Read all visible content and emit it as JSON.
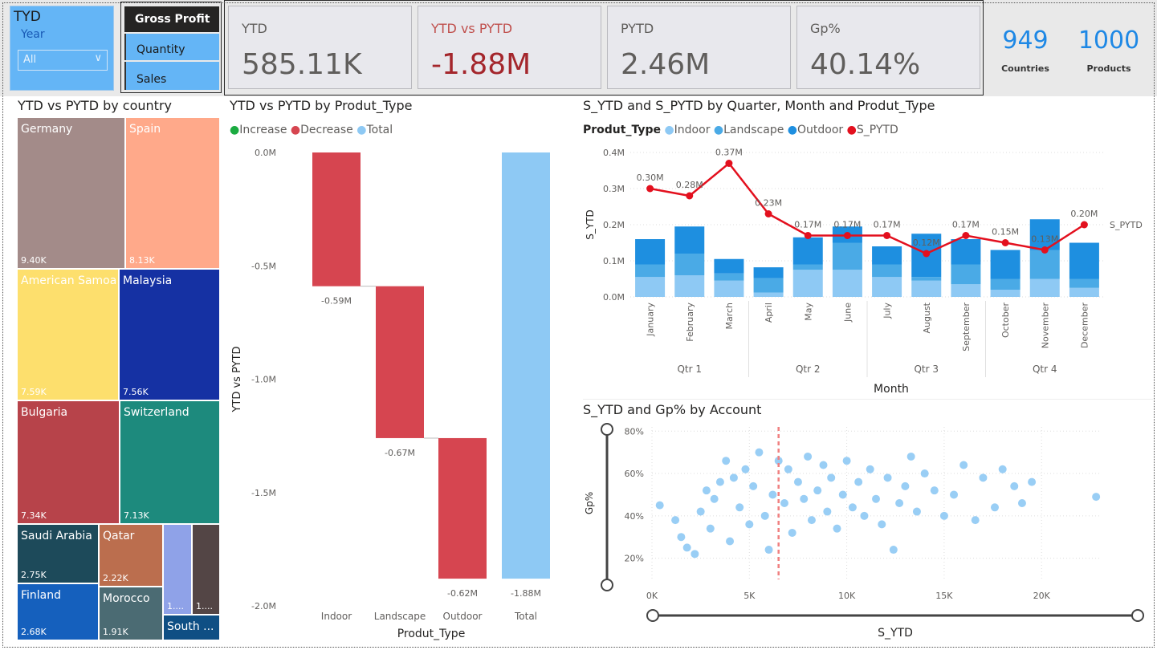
{
  "slicer": {
    "title": "TYD",
    "label": "Year",
    "value": "All"
  },
  "measures": [
    "Gross Profit",
    "Quantity",
    "Sales"
  ],
  "kpis": [
    {
      "label": "YTD",
      "value": "585.11K",
      "color": "#605e5c"
    },
    {
      "label": "YTD vs PYTD",
      "value": "-1.88M",
      "color": "#a4262c"
    },
    {
      "label": "PYTD",
      "value": "2.46M",
      "color": "#605e5c"
    },
    {
      "label": "Gp%",
      "value": "40.14%",
      "color": "#605e5c"
    }
  ],
  "counts": [
    {
      "value": "949",
      "label": "Countries"
    },
    {
      "value": "1000",
      "label": "Products"
    }
  ],
  "treemap": {
    "title": "YTD vs PYTD by country",
    "tiles": [
      {
        "name": "Germany",
        "value": "9.40K",
        "color": "#a38b89"
      },
      {
        "name": "Spain",
        "value": "8.13K",
        "color": "#ffa98a"
      },
      {
        "name": "American Samoa",
        "value": "7.59K",
        "color": "#fddf6d"
      },
      {
        "name": "Malaysia",
        "value": "7.56K",
        "color": "#1531a3"
      },
      {
        "name": "Bulgaria",
        "value": "7.34K",
        "color": "#b7434a"
      },
      {
        "name": "Switzerland",
        "value": "7.13K",
        "color": "#1d8a7d"
      },
      {
        "name": "Saudi Arabia",
        "value": "2.75K",
        "color": "#1d4a5a"
      },
      {
        "name": "Qatar",
        "value": "2.22K",
        "color": "#bb6e4e"
      },
      {
        "name": "",
        "value": "1....",
        "color": "#8fa2e8"
      },
      {
        "name": "",
        "value": "1....",
        "color": "#534545"
      },
      {
        "name": "Finland",
        "value": "2.68K",
        "color": "#1560bd"
      },
      {
        "name": "Morocco",
        "value": "1.91K",
        "color": "#4b6b73"
      },
      {
        "name": "South ...",
        "value": "",
        "color": "#0f4f84"
      }
    ]
  },
  "waterfall": {
    "title": "YTD vs PYTD by Produt_Type",
    "legend": [
      {
        "label": "Increase",
        "color": "#1aab40"
      },
      {
        "label": "Decrease",
        "color": "#d64550"
      },
      {
        "label": "Total",
        "color": "#8ec9f4"
      }
    ]
  },
  "combo": {
    "title": "S_YTD and S_PYTD by Quarter, Month and Produt_Type",
    "legend_title": "Produt_Type",
    "legend": [
      {
        "label": "Indoor",
        "color": "#8ec9f4"
      },
      {
        "label": "Landscape",
        "color": "#4aaae6"
      },
      {
        "label": "Outdoor",
        "color": "#1e8fe0"
      },
      {
        "label": "S_PYTD",
        "color": "#e3101e"
      }
    ],
    "line_label": "S_PYTD"
  },
  "scatter": {
    "title": "S_YTD and Gp% by Account"
  },
  "chart_data": [
    {
      "type": "bar",
      "subtype": "waterfall",
      "title": "YTD vs PYTD by Produt_Type",
      "categories": [
        "Indoor",
        "Landscape",
        "Outdoor",
        "Total"
      ],
      "values": [
        -0.59,
        -0.67,
        -0.62,
        -1.88
      ],
      "data_labels": [
        "-0.59M",
        "-0.67M",
        "-0.62M",
        "-1.88M"
      ],
      "xlabel": "Produt_Type",
      "ylabel": "YTD vs PYTD",
      "ylim": [
        -2.0,
        0.0
      ],
      "yticks": [
        "0.0M",
        "-0.5M",
        "-1.0M",
        "-1.5M",
        "-2.0M"
      ],
      "legend_position": "top-left"
    },
    {
      "type": "bar",
      "subtype": "stacked-column-with-line",
      "title": "S_YTD and S_PYTD by Quarter, Month and Produt_Type",
      "categories": [
        "January",
        "February",
        "March",
        "April",
        "May",
        "June",
        "July",
        "August",
        "September",
        "October",
        "November",
        "December"
      ],
      "quarters": [
        {
          "label": "Qtr 1",
          "months": 3
        },
        {
          "label": "Qtr 2",
          "months": 3
        },
        {
          "label": "Qtr 3",
          "months": 3
        },
        {
          "label": "Qtr 4",
          "months": 3
        }
      ],
      "series": [
        {
          "name": "Indoor",
          "values": [
            0.055,
            0.06,
            0.045,
            0.012,
            0.075,
            0.075,
            0.055,
            0.045,
            0.035,
            0.02,
            0.05,
            0.025
          ]
        },
        {
          "name": "Landscape",
          "values": [
            0.035,
            0.06,
            0.02,
            0.04,
            0.015,
            0.075,
            0.035,
            0.01,
            0.055,
            0.03,
            0.08,
            0.025
          ]
        },
        {
          "name": "Outdoor",
          "values": [
            0.07,
            0.075,
            0.04,
            0.03,
            0.075,
            0.045,
            0.05,
            0.12,
            0.07,
            0.08,
            0.085,
            0.1
          ]
        },
        {
          "name": "S_PYTD",
          "type": "line",
          "values": [
            0.3,
            0.28,
            0.37,
            0.23,
            0.17,
            0.17,
            0.17,
            0.12,
            0.17,
            0.15,
            0.13,
            0.2
          ]
        }
      ],
      "line_labels": [
        "0.30M",
        "0.28M",
        "0.37M",
        "0.23M",
        "0.17M",
        "0.17M",
        "0.17M",
        "0.12M",
        "0.17M",
        "0.15M",
        "0.13M",
        "0.20M"
      ],
      "xlabel": "Month",
      "ylabel": "S_YTD",
      "ylim": [
        0,
        0.4
      ],
      "yticks": [
        "0.0M",
        "0.1M",
        "0.2M",
        "0.3M",
        "0.4M"
      ],
      "legend_position": "top-left"
    },
    {
      "type": "scatter",
      "title": "S_YTD and Gp% by Account",
      "xlabel": "S_YTD",
      "ylabel": "Gp%",
      "xlim": [
        0,
        23000
      ],
      "ylim": [
        10,
        82
      ],
      "xticks": [
        "0K",
        "5K",
        "10K",
        "15K",
        "20K"
      ],
      "yticks": [
        "20%",
        "40%",
        "60%",
        "80%"
      ],
      "reference_line_x": 6500,
      "points": [
        [
          400,
          45
        ],
        [
          1200,
          38
        ],
        [
          1500,
          30
        ],
        [
          1800,
          25
        ],
        [
          2200,
          22
        ],
        [
          2500,
          42
        ],
        [
          2800,
          52
        ],
        [
          3000,
          34
        ],
        [
          3200,
          48
        ],
        [
          3500,
          56
        ],
        [
          3800,
          66
        ],
        [
          4000,
          28
        ],
        [
          4200,
          58
        ],
        [
          4500,
          44
        ],
        [
          4800,
          62
        ],
        [
          5000,
          36
        ],
        [
          5200,
          54
        ],
        [
          5500,
          70
        ],
        [
          5800,
          40
        ],
        [
          6000,
          24
        ],
        [
          6200,
          50
        ],
        [
          6500,
          66
        ],
        [
          6800,
          46
        ],
        [
          7000,
          62
        ],
        [
          7200,
          32
        ],
        [
          7500,
          56
        ],
        [
          7800,
          48
        ],
        [
          8000,
          68
        ],
        [
          8200,
          38
        ],
        [
          8500,
          52
        ],
        [
          8800,
          64
        ],
        [
          9000,
          42
        ],
        [
          9200,
          58
        ],
        [
          9500,
          34
        ],
        [
          9800,
          50
        ],
        [
          10000,
          66
        ],
        [
          10300,
          44
        ],
        [
          10600,
          56
        ],
        [
          10900,
          40
        ],
        [
          11200,
          62
        ],
        [
          11500,
          48
        ],
        [
          11800,
          36
        ],
        [
          12100,
          58
        ],
        [
          12400,
          24
        ],
        [
          12700,
          46
        ],
        [
          13000,
          54
        ],
        [
          13300,
          68
        ],
        [
          13600,
          42
        ],
        [
          14000,
          60
        ],
        [
          14500,
          52
        ],
        [
          15000,
          40
        ],
        [
          15500,
          50
        ],
        [
          16000,
          64
        ],
        [
          16600,
          38
        ],
        [
          17000,
          58
        ],
        [
          17600,
          44
        ],
        [
          18000,
          62
        ],
        [
          18600,
          54
        ],
        [
          19000,
          46
        ],
        [
          19500,
          56
        ],
        [
          22800,
          49
        ]
      ]
    }
  ]
}
